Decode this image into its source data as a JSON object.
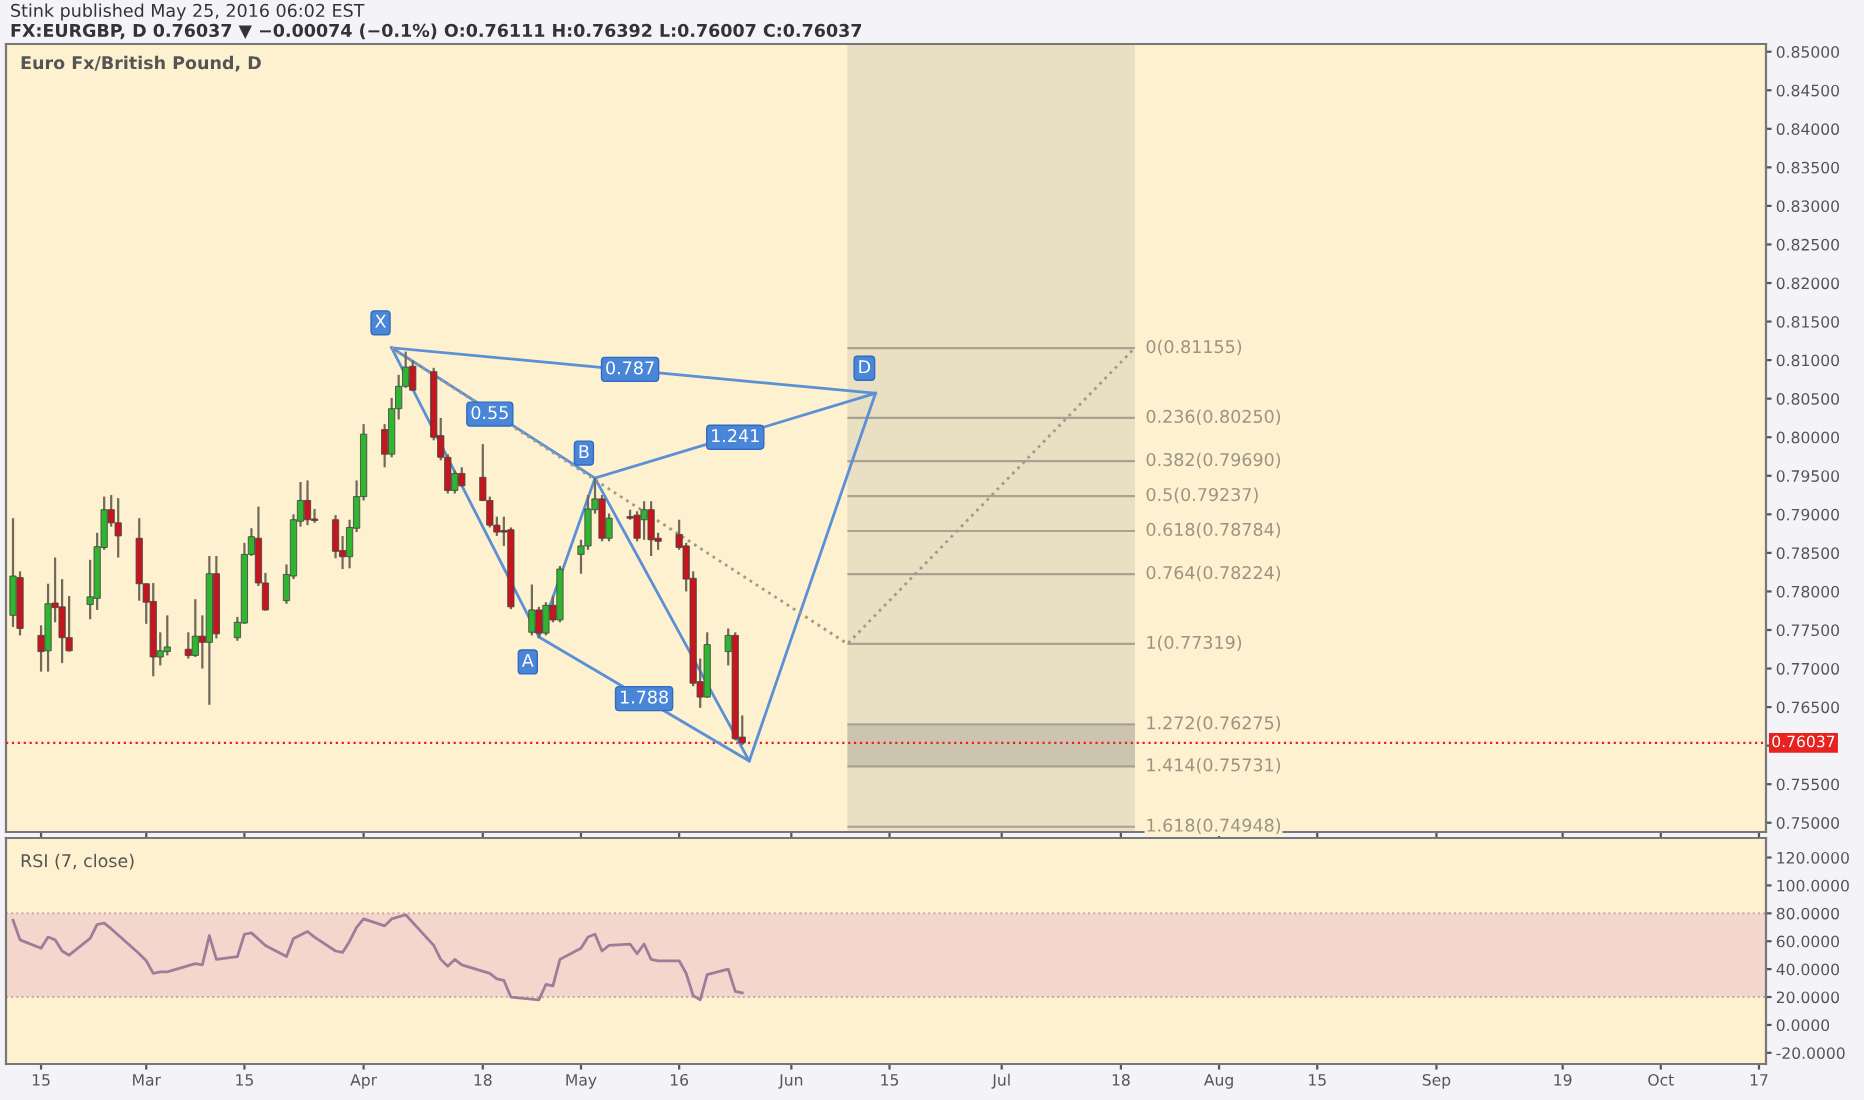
{
  "chart_data": [
    {
      "type": "candlestick",
      "title": "Euro Fx/British Pound, D",
      "subtitle": "FX:EURGBP, D 0.76037 ▼ −0.00074 (−0.1%) O:0.76111 H:0.76392 L:0.76007 C:0.76037",
      "annotations": [
        "Stink published May 25, 2016 06:02 EST",
        {
          "text": "X",
          "x": "2016-04-05",
          "y": 0.8116
        },
        {
          "text": "A",
          "x": "2016-04-26",
          "y": 0.7741
        },
        {
          "text": "B",
          "x": "2016-05-04",
          "y": 0.7947
        },
        {
          "text": "D",
          "x": "2016-06-13",
          "y": 0.8057
        },
        {
          "text": "0.55",
          "x": "2016-04-19",
          "y": 0.803
        },
        {
          "text": "0.787",
          "x": "2016-05-09",
          "y": 0.8088
        },
        {
          "text": "1.241",
          "x": "2016-05-24",
          "y": 0.8
        },
        {
          "text": "1.788",
          "x": "2016-05-11",
          "y": 0.7661
        }
      ],
      "x": [
        "2016-02-11",
        "2016-02-12",
        "2016-02-15",
        "2016-02-16",
        "2016-02-17",
        "2016-02-18",
        "2016-02-19",
        "2016-02-22",
        "2016-02-23",
        "2016-02-24",
        "2016-02-25",
        "2016-02-26",
        "2016-02-29",
        "2016-03-01",
        "2016-03-02",
        "2016-03-03",
        "2016-03-04",
        "2016-03-07",
        "2016-03-08",
        "2016-03-09",
        "2016-03-10",
        "2016-03-11",
        "2016-03-14",
        "2016-03-15",
        "2016-03-16",
        "2016-03-17",
        "2016-03-18",
        "2016-03-21",
        "2016-03-22",
        "2016-03-23",
        "2016-03-24",
        "2016-03-25",
        "2016-03-28",
        "2016-03-29",
        "2016-03-30",
        "2016-03-31",
        "2016-04-01",
        "2016-04-04",
        "2016-04-05",
        "2016-04-06",
        "2016-04-07",
        "2016-04-08",
        "2016-04-11",
        "2016-04-12",
        "2016-04-13",
        "2016-04-14",
        "2016-04-15",
        "2016-04-18",
        "2016-04-19",
        "2016-04-20",
        "2016-04-21",
        "2016-04-22",
        "2016-04-25",
        "2016-04-26",
        "2016-04-27",
        "2016-04-28",
        "2016-04-29",
        "2016-05-02",
        "2016-05-03",
        "2016-05-04",
        "2016-05-05",
        "2016-05-06",
        "2016-05-09",
        "2016-05-10",
        "2016-05-11",
        "2016-05-12",
        "2016-05-13",
        "2016-05-16",
        "2016-05-17",
        "2016-05-18",
        "2016-05-19",
        "2016-05-20",
        "2016-05-23",
        "2016-05-24",
        "2016-05-25"
      ],
      "ohlc": [
        [
          0.7769,
          0.7895,
          0.7754,
          0.782
        ],
        [
          0.7818,
          0.7826,
          0.7743,
          0.7752
        ],
        [
          0.7743,
          0.7756,
          0.7696,
          0.7722
        ],
        [
          0.7723,
          0.781,
          0.7696,
          0.7784
        ],
        [
          0.7785,
          0.7844,
          0.776,
          0.7779
        ],
        [
          0.778,
          0.7816,
          0.7707,
          0.774
        ],
        [
          0.774,
          0.7794,
          0.7722,
          0.7723
        ],
        [
          0.7783,
          0.7841,
          0.7764,
          0.7793
        ],
        [
          0.7791,
          0.7876,
          0.7776,
          0.7858
        ],
        [
          0.7857,
          0.7923,
          0.7854,
          0.7906
        ],
        [
          0.7906,
          0.7925,
          0.7884,
          0.7889
        ],
        [
          0.7889,
          0.7921,
          0.7844,
          0.7872
        ],
        [
          0.7869,
          0.7895,
          0.7788,
          0.781
        ],
        [
          0.781,
          0.781,
          0.7758,
          0.7786
        ],
        [
          0.7787,
          0.7811,
          0.769,
          0.7715
        ],
        [
          0.7715,
          0.7747,
          0.7704,
          0.7723
        ],
        [
          0.7722,
          0.7769,
          0.7717,
          0.7728
        ],
        [
          0.7725,
          0.7747,
          0.7713,
          0.7717
        ],
        [
          0.7717,
          0.779,
          0.7715,
          0.7742
        ],
        [
          0.7742,
          0.7769,
          0.77,
          0.7734
        ],
        [
          0.7734,
          0.7846,
          0.7653,
          0.7823
        ],
        [
          0.7823,
          0.7846,
          0.7739,
          0.7745
        ],
        [
          0.774,
          0.7767,
          0.7736,
          0.776
        ],
        [
          0.7759,
          0.7863,
          0.7758,
          0.7848
        ],
        [
          0.7848,
          0.7882,
          0.7846,
          0.7871
        ],
        [
          0.7869,
          0.791,
          0.7807,
          0.7811
        ],
        [
          0.7811,
          0.7824,
          0.7775,
          0.7776
        ],
        [
          0.7788,
          0.7835,
          0.7784,
          0.7822
        ],
        [
          0.782,
          0.79,
          0.7816,
          0.7893
        ],
        [
          0.7891,
          0.7942,
          0.7884,
          0.7918
        ],
        [
          0.7918,
          0.7944,
          0.7886,
          0.7893
        ],
        [
          0.7894,
          0.7907,
          0.7889,
          0.7892
        ],
        [
          0.7893,
          0.7899,
          0.7843,
          0.7852
        ],
        [
          0.7853,
          0.7872,
          0.7829,
          0.7845
        ],
        [
          0.7845,
          0.7893,
          0.783,
          0.7883
        ],
        [
          0.7882,
          0.7944,
          0.7877,
          0.7923
        ],
        [
          0.7923,
          0.8017,
          0.7918,
          0.8004
        ],
        [
          0.801,
          0.8017,
          0.7961,
          0.7978
        ],
        [
          0.7978,
          0.8051,
          0.7974,
          0.8037
        ],
        [
          0.8037,
          0.8081,
          0.8023,
          0.8066
        ],
        [
          0.8066,
          0.8111,
          0.8064,
          0.8091
        ],
        [
          0.8092,
          0.81,
          0.806,
          0.8061
        ],
        [
          0.8085,
          0.809,
          0.7996,
          0.8
        ],
        [
          0.8002,
          0.8025,
          0.797,
          0.7974
        ],
        [
          0.7974,
          0.7978,
          0.7927,
          0.7931
        ],
        [
          0.7931,
          0.7957,
          0.7927,
          0.7953
        ],
        [
          0.7953,
          0.7961,
          0.7936,
          0.7937
        ],
        [
          0.7948,
          0.7991,
          0.7917,
          0.7918
        ],
        [
          0.7918,
          0.7923,
          0.7883,
          0.7886
        ],
        [
          0.7886,
          0.7897,
          0.7872,
          0.7877
        ],
        [
          0.7879,
          0.7897,
          0.7859,
          0.7877
        ],
        [
          0.788,
          0.7883,
          0.7777,
          0.778
        ],
        [
          0.7747,
          0.7809,
          0.7743,
          0.7776
        ],
        [
          0.7776,
          0.778,
          0.774,
          0.7746
        ],
        [
          0.7746,
          0.7786,
          0.7743,
          0.7782
        ],
        [
          0.7782,
          0.7794,
          0.776,
          0.7763
        ],
        [
          0.7763,
          0.7833,
          0.776,
          0.7829
        ],
        [
          0.7848,
          0.7867,
          0.7823,
          0.7859
        ],
        [
          0.7859,
          0.7925,
          0.7854,
          0.7907
        ],
        [
          0.7906,
          0.7947,
          0.7901,
          0.792
        ],
        [
          0.792,
          0.7925,
          0.7865,
          0.7869
        ],
        [
          0.7869,
          0.7901,
          0.7865,
          0.7895
        ],
        [
          0.7897,
          0.7906,
          0.7893,
          0.7895
        ],
        [
          0.7899,
          0.7904,
          0.7865,
          0.7869
        ],
        [
          0.7893,
          0.7917,
          0.7867,
          0.7906
        ],
        [
          0.7906,
          0.7917,
          0.7846,
          0.7867
        ],
        [
          0.7869,
          0.7876,
          0.7854,
          0.7865
        ],
        [
          0.7874,
          0.7893,
          0.7854,
          0.7857
        ],
        [
          0.7859,
          0.7863,
          0.78,
          0.7816
        ],
        [
          0.7817,
          0.7826,
          0.7677,
          0.7681
        ],
        [
          0.7683,
          0.7713,
          0.7649,
          0.7663
        ],
        [
          0.7663,
          0.7747,
          0.7662,
          0.7731
        ],
        [
          0.7722,
          0.7752,
          0.7704,
          0.7743
        ],
        [
          0.7743,
          0.7747,
          0.7607,
          0.7609
        ],
        [
          0.76111,
          0.76392,
          0.76007,
          0.76037
        ]
      ],
      "series": [
        {
          "type": "line",
          "color": "#5b8fd6",
          "x": [
            "2016-04-05",
            "2016-04-26",
            "2016-05-04",
            "2016-05-26",
            "2016-06-13"
          ],
          "values": [
            0.8116,
            0.7741,
            0.7947,
            0.758,
            0.8057
          ]
        },
        {
          "type": "line",
          "color": "#5b8fd6",
          "x": [
            "2016-04-05",
            "2016-05-04"
          ],
          "values": [
            0.8116,
            0.7947
          ]
        },
        {
          "type": "line",
          "color": "#5b8fd6",
          "x": [
            "2016-05-04",
            "2016-06-13"
          ],
          "values": [
            0.7947,
            0.8057
          ]
        },
        {
          "type": "line",
          "color": "#5b8fd6",
          "x": [
            "2016-04-05",
            "2016-06-13"
          ],
          "values": [
            0.8116,
            0.8057
          ]
        },
        {
          "type": "line",
          "color": "#5b8fd6",
          "x": [
            "2016-04-26",
            "2016-05-26"
          ],
          "values": [
            0.7741,
            0.758
          ]
        },
        {
          "type": "line",
          "color": "#a09a8a",
          "line_style": "dotted",
          "x": [
            "2016-04-05",
            "2016-06-09",
            "2016-07-20"
          ],
          "values": [
            0.8116,
            0.7732,
            0.8116
          ]
        }
      ],
      "bands": [
        {
          "axis": "x",
          "from": "2016-06-09",
          "to": "2016-07-20",
          "color": "#e9dfc3"
        },
        {
          "axis": "y",
          "from": 0.75731,
          "to": 0.76275,
          "color": "#cdc4b0"
        }
      ],
      "ref_lines": [
        {
          "axis": "y",
          "value": 0.81155,
          "label": "0(0.81155)",
          "color": "#a8a290"
        },
        {
          "axis": "y",
          "value": 0.8025,
          "label": "0.236(0.80250)",
          "color": "#a8a290"
        },
        {
          "axis": "y",
          "value": 0.7969,
          "label": "0.382(0.79690)",
          "color": "#a8a290"
        },
        {
          "axis": "y",
          "value": 0.79237,
          "label": "0.5(0.79237)",
          "color": "#a8a290"
        },
        {
          "axis": "y",
          "value": 0.78784,
          "label": "0.618(0.78784)",
          "color": "#a8a290"
        },
        {
          "axis": "y",
          "value": 0.78224,
          "label": "0.764(0.78224)",
          "color": "#a8a290"
        },
        {
          "axis": "y",
          "value": 0.77319,
          "label": "1(0.77319)",
          "color": "#a8a290"
        },
        {
          "axis": "y",
          "value": 0.76275,
          "label": "1.272(0.76275)",
          "color": "#a8a290"
        },
        {
          "axis": "y",
          "value": 0.75731,
          "label": "1.414(0.75731)",
          "color": "#a8a290"
        },
        {
          "axis": "y",
          "value": 0.74948,
          "label": "1.618(0.74948)",
          "color": "#a8a290"
        },
        {
          "axis": "y",
          "value": 0.76037,
          "label": "0.76037",
          "color": "#e8231f",
          "line_style": "dotted"
        }
      ],
      "xlim": [
        "2016-02-10",
        "2016-10-18"
      ],
      "ylim": [
        0.7488,
        0.851
      ],
      "xticks": [
        {
          "value": "2016-02-15",
          "label": null
        },
        {
          "value": "2016-03-01",
          "label": null
        },
        {
          "value": "2016-03-15",
          "label": null
        },
        {
          "value": "2016-04-01",
          "label": null
        },
        {
          "value": "2016-04-18",
          "label": null
        },
        {
          "value": "2016-05-02",
          "label": null
        },
        {
          "value": "2016-05-16",
          "label": null
        },
        {
          "value": "2016-06-01",
          "label": null
        },
        {
          "value": "2016-06-15",
          "label": null
        },
        {
          "value": "2016-07-01",
          "label": null
        },
        {
          "value": "2016-07-18",
          "label": null
        },
        {
          "value": "2016-08-01",
          "label": null
        },
        {
          "value": "2016-08-15",
          "label": null
        },
        {
          "value": "2016-09-01",
          "label": null
        },
        {
          "value": "2016-09-19",
          "label": null
        },
        {
          "value": "2016-10-03",
          "label": null
        },
        {
          "value": "2016-10-17",
          "label": null
        }
      ],
      "yticks": [
        {
          "value": 0.75,
          "label": "0.75000"
        },
        {
          "value": 0.755,
          "label": "0.75500"
        },
        {
          "value": 0.76,
          "label": null
        },
        {
          "value": 0.765,
          "label": "0.76500"
        },
        {
          "value": 0.77,
          "label": "0.77000"
        },
        {
          "value": 0.775,
          "label": "0.77500"
        },
        {
          "value": 0.78,
          "label": "0.78000"
        },
        {
          "value": 0.785,
          "label": "0.78500"
        },
        {
          "value": 0.79,
          "label": "0.79000"
        },
        {
          "value": 0.795,
          "label": "0.79500"
        },
        {
          "value": 0.8,
          "label": "0.80000"
        },
        {
          "value": 0.805,
          "label": "0.80500"
        },
        {
          "value": 0.81,
          "label": "0.81000"
        },
        {
          "value": 0.815,
          "label": "0.81500"
        },
        {
          "value": 0.82,
          "label": "0.82000"
        },
        {
          "value": 0.825,
          "label": "0.82500"
        },
        {
          "value": 0.83,
          "label": "0.83000"
        },
        {
          "value": 0.835,
          "label": "0.83500"
        },
        {
          "value": 0.84,
          "label": "0.84000"
        },
        {
          "value": 0.845,
          "label": "0.84500"
        },
        {
          "value": 0.85,
          "label": "0.85000"
        }
      ],
      "tick_labels": "y"
    },
    {
      "type": "line",
      "title": "RSI (7, close)",
      "series": [
        {
          "color": "#a07c9a",
          "x": [
            "2016-02-11",
            "2016-02-12",
            "2016-02-15",
            "2016-02-16",
            "2016-02-17",
            "2016-02-18",
            "2016-02-19",
            "2016-02-22",
            "2016-02-23",
            "2016-02-24",
            "2016-02-25",
            "2016-02-29",
            "2016-03-01",
            "2016-03-02",
            "2016-03-03",
            "2016-03-04",
            "2016-03-08",
            "2016-03-09",
            "2016-03-10",
            "2016-03-11",
            "2016-03-14",
            "2016-03-15",
            "2016-03-16",
            "2016-03-18",
            "2016-03-21",
            "2016-03-22",
            "2016-03-24",
            "2016-03-25",
            "2016-03-28",
            "2016-03-29",
            "2016-03-30",
            "2016-03-31",
            "2016-04-01",
            "2016-04-04",
            "2016-04-05",
            "2016-04-07",
            "2016-04-11",
            "2016-04-12",
            "2016-04-13",
            "2016-04-14",
            "2016-04-15",
            "2016-04-19",
            "2016-04-20",
            "2016-04-21",
            "2016-04-22",
            "2016-04-26",
            "2016-04-27",
            "2016-04-28",
            "2016-04-29",
            "2016-05-02",
            "2016-05-03",
            "2016-05-04",
            "2016-05-05",
            "2016-05-06",
            "2016-05-09",
            "2016-05-10",
            "2016-05-11",
            "2016-05-12",
            "2016-05-13",
            "2016-05-16",
            "2016-05-17",
            "2016-05-18",
            "2016-05-19",
            "2016-05-20",
            "2016-05-23",
            "2016-05-24",
            "2016-05-25"
          ],
          "values": [
            75,
            61,
            55,
            63,
            61,
            53,
            50,
            62,
            72,
            73,
            69,
            51,
            46,
            37,
            38,
            38,
            44,
            43,
            64,
            47,
            49,
            65,
            66,
            57,
            49,
            62,
            67,
            63,
            53,
            52,
            60,
            70,
            76,
            71,
            76,
            79,
            57,
            47,
            42,
            47,
            43,
            37,
            33,
            32,
            20,
            18,
            29,
            28,
            47,
            55,
            63,
            65,
            53,
            57,
            58,
            51,
            58,
            47,
            46,
            46,
            37,
            21,
            18,
            36,
            40,
            24,
            23
          ]
        }
      ],
      "bands": [
        {
          "axis": "y",
          "from": 20,
          "to": 80,
          "color": "#f3d6cc"
        }
      ],
      "xlim": [
        "2016-02-10",
        "2016-10-18"
      ],
      "ylim": [
        -28,
        134
      ],
      "xticks": [
        {
          "value": "2016-02-15",
          "label": "15"
        },
        {
          "value": "2016-03-01",
          "label": "Mar"
        },
        {
          "value": "2016-03-15",
          "label": "15"
        },
        {
          "value": "2016-04-01",
          "label": "Apr"
        },
        {
          "value": "2016-04-18",
          "label": "18"
        },
        {
          "value": "2016-05-02",
          "label": "May"
        },
        {
          "value": "2016-05-16",
          "label": "16"
        },
        {
          "value": "2016-06-01",
          "label": "Jun"
        },
        {
          "value": "2016-06-15",
          "label": "15"
        },
        {
          "value": "2016-07-01",
          "label": "Jul"
        },
        {
          "value": "2016-07-18",
          "label": "18"
        },
        {
          "value": "2016-08-01",
          "label": "Aug"
        },
        {
          "value": "2016-08-15",
          "label": "15"
        },
        {
          "value": "2016-09-01",
          "label": "Sep"
        },
        {
          "value": "2016-09-19",
          "label": "19"
        },
        {
          "value": "2016-10-03",
          "label": "Oct"
        },
        {
          "value": "2016-10-17",
          "label": "17"
        }
      ],
      "yticks": [
        {
          "value": -20,
          "label": "-20.0000"
        },
        {
          "value": 0,
          "label": "0.0000"
        },
        {
          "value": 20,
          "label": "20.0000"
        },
        {
          "value": 40,
          "label": "40.0000"
        },
        {
          "value": 60,
          "label": "60.0000"
        },
        {
          "value": 80,
          "label": "80.0000"
        },
        {
          "value": 100,
          "label": "100.0000"
        },
        {
          "value": 120,
          "label": "120.0000"
        }
      ]
    }
  ]
}
